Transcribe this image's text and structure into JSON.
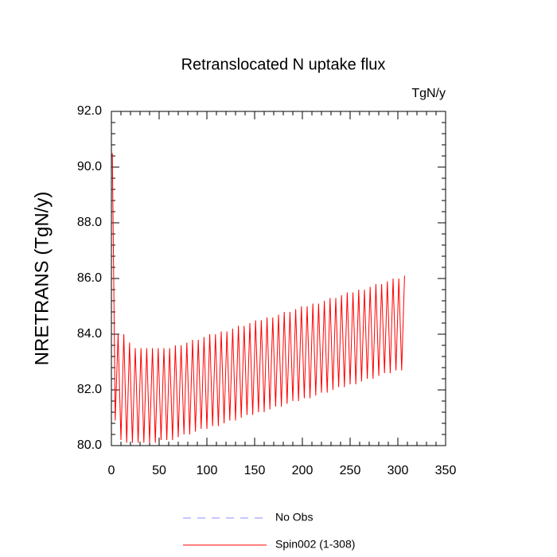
{
  "chart_data": {
    "type": "line",
    "title": "Retranslocated N uptake flux",
    "units_label": "TgN/y",
    "ylabel": "NRETRANS  (TgN/y)",
    "xlim": [
      0,
      350
    ],
    "xticks": [
      0,
      50,
      100,
      150,
      200,
      250,
      300,
      350
    ],
    "ylim": [
      80,
      92
    ],
    "yticks": [
      {
        "value": 80,
        "label": "80.0"
      },
      {
        "value": 82,
        "label": "82.0"
      },
      {
        "value": 84,
        "label": "84.0"
      },
      {
        "value": 86,
        "label": "86.0"
      },
      {
        "value": 88,
        "label": "88.0"
      },
      {
        "value": 90,
        "label": "90.0"
      },
      {
        "value": 92,
        "label": "92.0"
      }
    ],
    "legend_items": [
      {
        "name": "No Obs",
        "color": "#8c8cff",
        "dashed": true
      }
    ],
    "x": [
      1,
      4,
      7,
      10,
      13,
      16,
      19,
      22,
      25,
      28,
      31,
      34,
      37,
      40,
      43,
      46,
      49,
      52,
      55,
      58,
      61,
      64,
      67,
      70,
      73,
      76,
      79,
      82,
      85,
      88,
      91,
      94,
      97,
      100,
      103,
      106,
      109,
      112,
      115,
      118,
      121,
      124,
      127,
      130,
      133,
      136,
      139,
      142,
      145,
      148,
      151,
      154,
      157,
      160,
      163,
      166,
      169,
      172,
      175,
      178,
      181,
      184,
      187,
      190,
      193,
      196,
      199,
      202,
      205,
      208,
      211,
      214,
      217,
      220,
      223,
      226,
      229,
      232,
      235,
      238,
      241,
      244,
      247,
      250,
      253,
      256,
      259,
      262,
      265,
      268,
      271,
      274,
      277,
      280,
      283,
      286,
      289,
      292,
      295,
      298,
      301,
      304,
      307
    ],
    "series": [
      {
        "name": "Spin002 (1-308)",
        "color": "#ff0000",
        "values": [
          90.5,
          80.9,
          84.0,
          80.2,
          84.0,
          80.1,
          83.7,
          80.1,
          83.5,
          80.1,
          83.5,
          80.1,
          83.5,
          80.1,
          83.5,
          80.1,
          83.5,
          80.2,
          83.5,
          80.2,
          83.5,
          80.2,
          83.6,
          80.3,
          83.6,
          80.4,
          83.7,
          80.4,
          83.8,
          80.5,
          83.8,
          80.6,
          83.9,
          80.6,
          84.0,
          80.7,
          84.0,
          80.7,
          84.1,
          80.8,
          84.1,
          80.9,
          84.2,
          80.9,
          84.3,
          81.0,
          84.3,
          81.1,
          84.4,
          81.1,
          84.5,
          81.2,
          84.5,
          81.2,
          84.6,
          81.3,
          84.6,
          81.4,
          84.7,
          81.4,
          84.8,
          81.5,
          84.8,
          81.6,
          84.9,
          81.6,
          85.0,
          81.7,
          85.0,
          81.7,
          85.1,
          81.8,
          85.1,
          81.9,
          85.2,
          81.9,
          85.3,
          82.0,
          85.3,
          82.1,
          85.4,
          82.1,
          85.5,
          82.2,
          85.5,
          82.2,
          85.6,
          82.3,
          85.6,
          82.4,
          85.7,
          82.4,
          85.8,
          82.5,
          85.8,
          82.6,
          85.9,
          82.6,
          86.0,
          82.7,
          86.0,
          82.7,
          86.1
        ]
      }
    ]
  }
}
